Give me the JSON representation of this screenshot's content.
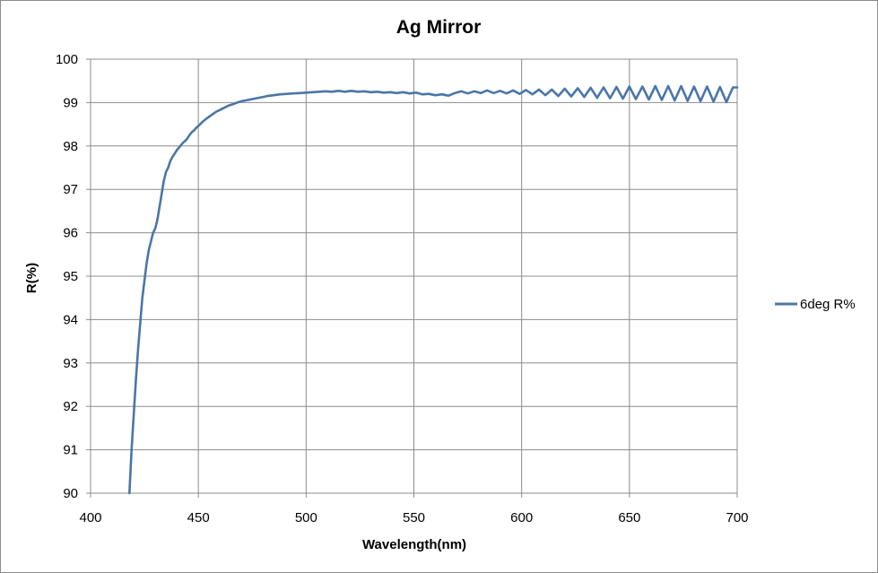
{
  "chart_data": {
    "type": "line",
    "title": "Ag Mirror",
    "xlabel": "Wavelength(nm)",
    "ylabel": "R(%)",
    "xlim": [
      400,
      700
    ],
    "ylim": [
      90,
      100
    ],
    "x_ticks": [
      "400",
      "450",
      "500",
      "550",
      "600",
      "650",
      "700"
    ],
    "y_ticks": [
      "90",
      "91",
      "92",
      "93",
      "94",
      "95",
      "96",
      "97",
      "98",
      "99",
      "100"
    ],
    "grid": true,
    "legend_position": "right",
    "series": [
      {
        "name": "6deg R%",
        "color": "#4a76a8",
        "x": [
          418,
          419,
          420,
          421,
          422,
          423,
          424,
          425,
          426,
          427,
          428,
          429,
          430,
          431,
          432,
          433,
          434,
          435,
          436,
          437,
          438,
          439,
          440,
          441,
          442,
          443,
          444,
          445,
          446,
          447,
          448,
          449,
          450,
          452,
          454,
          456,
          458,
          460,
          462,
          464,
          466,
          468,
          470,
          473,
          476,
          479,
          482,
          485,
          488,
          491,
          494,
          497,
          500,
          503,
          506,
          509,
          512,
          515,
          518,
          521,
          524,
          527,
          530,
          533,
          536,
          539,
          542,
          545,
          548,
          551,
          554,
          557,
          560,
          563,
          566,
          569,
          572,
          575,
          578,
          581,
          584,
          587,
          590,
          593,
          596,
          599,
          602,
          605,
          608,
          611,
          614,
          617,
          620,
          623,
          626,
          629,
          632,
          635,
          638,
          641,
          644,
          647,
          650,
          653,
          656,
          659,
          662,
          665,
          668,
          671,
          674,
          677,
          680,
          683,
          686,
          689,
          692,
          695,
          698,
          700
        ],
        "values": [
          90.0,
          91.0,
          91.8,
          92.6,
          93.3,
          93.9,
          94.5,
          94.9,
          95.3,
          95.6,
          95.8,
          96.0,
          96.1,
          96.3,
          96.6,
          96.9,
          97.2,
          97.4,
          97.5,
          97.65,
          97.75,
          97.82,
          97.9,
          97.96,
          98.02,
          98.08,
          98.12,
          98.18,
          98.26,
          98.32,
          98.36,
          98.42,
          98.46,
          98.56,
          98.64,
          98.71,
          98.78,
          98.83,
          98.88,
          98.93,
          98.96,
          99.0,
          99.03,
          99.06,
          99.09,
          99.12,
          99.15,
          99.17,
          99.19,
          99.2,
          99.21,
          99.22,
          99.23,
          99.24,
          99.25,
          99.26,
          99.25,
          99.27,
          99.25,
          99.27,
          99.25,
          99.26,
          99.24,
          99.25,
          99.23,
          99.24,
          99.22,
          99.24,
          99.21,
          99.23,
          99.19,
          99.2,
          99.17,
          99.19,
          99.16,
          99.22,
          99.26,
          99.21,
          99.26,
          99.22,
          99.28,
          99.22,
          99.27,
          99.21,
          99.28,
          99.2,
          99.29,
          99.19,
          99.3,
          99.17,
          99.3,
          99.15,
          99.32,
          99.14,
          99.33,
          99.13,
          99.34,
          99.11,
          99.35,
          99.1,
          99.36,
          99.09,
          99.37,
          99.08,
          99.37,
          99.07,
          99.38,
          99.06,
          99.38,
          99.05,
          99.38,
          99.04,
          99.37,
          99.03,
          99.37,
          99.02,
          99.36,
          99.01,
          99.35,
          99.35
        ]
      }
    ]
  }
}
